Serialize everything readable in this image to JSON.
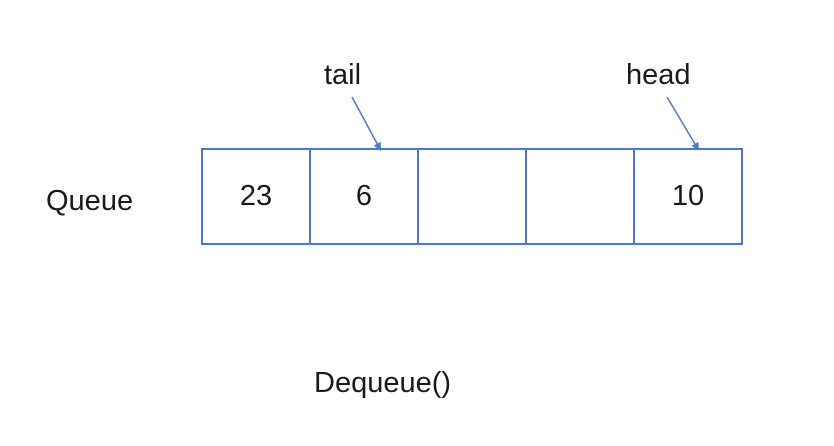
{
  "diagram": {
    "queue_label": "Queue",
    "cells": [
      "23",
      "6",
      "",
      "",
      "10"
    ],
    "pointers": {
      "tail": {
        "label": "tail",
        "cell_index": 1
      },
      "head": {
        "label": "head",
        "cell_index": 4
      }
    },
    "operation": "Dequeue()",
    "colors": {
      "box_border": "#4a7ac8",
      "arrow": "#4a7ac8",
      "text": "#1a1a1a"
    }
  }
}
